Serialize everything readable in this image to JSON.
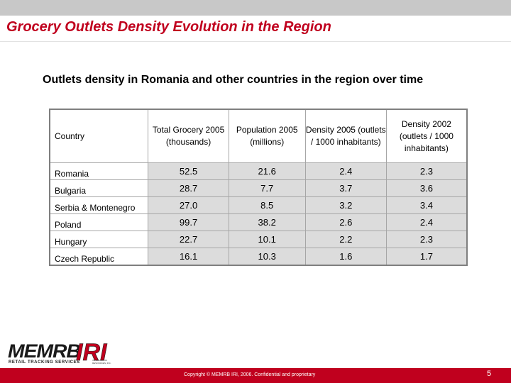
{
  "page_title": "Grocery Outlets Density Evolution in the Region",
  "subtitle": "Outlets density in Romania and other countries in the region over time",
  "table": {
    "headers": [
      "Country",
      "Total Grocery 2005 (thousands)",
      "Population 2005 (millions)",
      "Density 2005 (outlets / 1000 inhabitants)",
      "Density 2002 (outlets / 1000 inhabitants)"
    ],
    "rows": [
      [
        "Romania",
        "52.5",
        "21.6",
        "2.4",
        "2.3"
      ],
      [
        "Bulgaria",
        "28.7",
        "7.7",
        "3.7",
        "3.6"
      ],
      [
        "Serbia & Montenegro",
        "27.0",
        "8.5",
        "3.2",
        "3.4"
      ],
      [
        "Poland",
        "99.7",
        "38.2",
        "2.6",
        "2.4"
      ],
      [
        "Hungary",
        "22.7",
        "10.1",
        "2.2",
        "2.3"
      ],
      [
        "Czech Republic",
        "16.1",
        "10.3",
        "1.6",
        "1.7"
      ]
    ]
  },
  "logo": {
    "memrb": "MEMRB",
    "memrb_tagline": "RETAIL TRACKING SERVICES",
    "iri": "IRI",
    "iri_tagline": "INFORMATION RESOURCES, INC."
  },
  "footer": {
    "copyright": "Copyright © MEMRB IRI, 2006. Confidential and proprietary",
    "page_number": "5"
  },
  "colors": {
    "accent": "#c0001e",
    "top_bar": "#c8c8c8",
    "cell_fill": "#dcdcdc"
  }
}
